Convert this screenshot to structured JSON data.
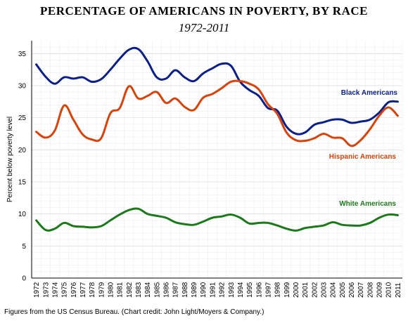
{
  "chart_data": {
    "type": "line",
    "title": "PERCENTAGE OF AMERICANS IN POVERTY, BY RACE",
    "subtitle": "1972-2011",
    "ylabel": "Percent below poverty level",
    "xlabel": "",
    "ylim": [
      0,
      37
    ],
    "yticks": [
      0,
      5,
      10,
      15,
      20,
      25,
      30,
      35
    ],
    "x": [
      "1972",
      "1973",
      "1974",
      "1975",
      "1976",
      "1977",
      "1978",
      "1979",
      "1980",
      "1981",
      "1982",
      "1983",
      "1984",
      "1985",
      "1986",
      "1987",
      "1988",
      "1989",
      "1990",
      "1991",
      "1992",
      "1993",
      "1994",
      "1995",
      "1996",
      "1997",
      "1998",
      "1999",
      "2000",
      "2001",
      "2002",
      "2003",
      "2004",
      "2005",
      "2006",
      "2007",
      "2008",
      "2009",
      "2010",
      "2011"
    ],
    "grid": true,
    "series": [
      {
        "name": "Black Americans",
        "color": "#0a1f8c",
        "values": [
          33.3,
          31.4,
          30.3,
          31.3,
          31.1,
          31.3,
          30.6,
          31.0,
          32.5,
          34.2,
          35.6,
          35.7,
          33.8,
          31.3,
          31.1,
          32.4,
          31.3,
          30.7,
          31.9,
          32.7,
          33.4,
          33.1,
          30.6,
          29.3,
          28.4,
          26.5,
          26.1,
          23.6,
          22.5,
          22.7,
          23.9,
          24.3,
          24.7,
          24.7,
          24.2,
          24.4,
          24.7,
          25.8,
          27.4,
          27.5
        ]
      },
      {
        "name": "Hispanic Americans",
        "color": "#d9420b",
        "values": [
          22.8,
          21.9,
          23.0,
          26.9,
          24.7,
          22.4,
          21.6,
          21.8,
          25.7,
          26.5,
          29.9,
          28.0,
          28.4,
          29.0,
          27.3,
          28.0,
          26.7,
          26.2,
          28.1,
          28.7,
          29.6,
          30.6,
          30.7,
          30.3,
          29.4,
          27.1,
          25.6,
          22.7,
          21.5,
          21.4,
          21.8,
          22.5,
          21.9,
          21.8,
          20.6,
          21.5,
          23.2,
          25.3,
          26.6,
          25.3
        ]
      },
      {
        "name": "White Americans",
        "color": "#1a7a1a",
        "values": [
          9.0,
          7.5,
          7.7,
          8.6,
          8.1,
          8.0,
          7.9,
          8.1,
          9.0,
          9.9,
          10.6,
          10.8,
          10.0,
          9.7,
          9.4,
          8.7,
          8.4,
          8.3,
          8.8,
          9.4,
          9.6,
          9.9,
          9.4,
          8.5,
          8.6,
          8.6,
          8.2,
          7.7,
          7.4,
          7.8,
          8.0,
          8.2,
          8.7,
          8.3,
          8.2,
          8.2,
          8.6,
          9.4,
          9.9,
          9.8
        ]
      }
    ]
  },
  "caption": "Figures from the US Census Bureau. (Chart credit: John Light/Moyers & Company.)"
}
